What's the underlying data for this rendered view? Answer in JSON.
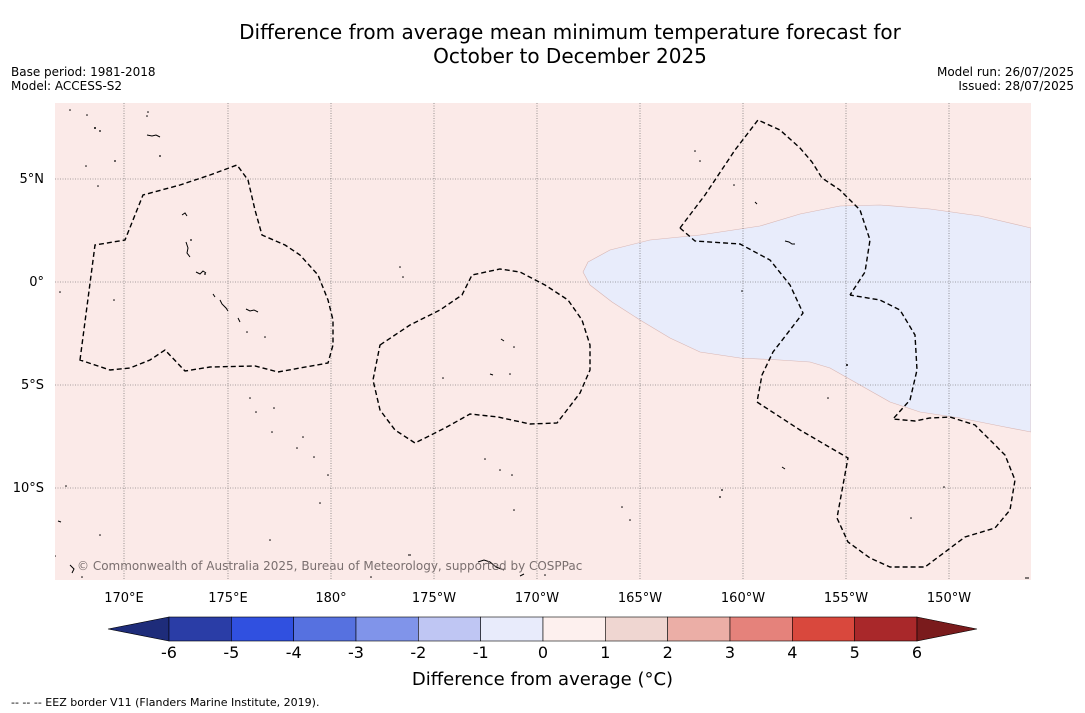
{
  "title": {
    "line1": "Difference from average mean minimum temperature forecast for",
    "line2": "October to December 2025"
  },
  "meta": {
    "base_period": "Base period: 1981-2018",
    "model": "Model: ACCESS-S2",
    "model_run": "Model run: 26/07/2025",
    "issued": "Issued: 28/07/2025"
  },
  "map": {
    "copyright": "© Commonwealth of Australia 2025, Bureau of Meteorology, supported by COSPPac",
    "lon_labels": [
      "170°E",
      "175°E",
      "180°",
      "175°W",
      "170°W",
      "165°W",
      "160°W",
      "155°W",
      "150°W"
    ],
    "lat_labels": [
      "5°N",
      "0°",
      "5°S",
      "10°S"
    ],
    "background_color": "#fbeae8",
    "anomaly_region_color": "#e8ecfb",
    "anomaly_region_category": "-1 to 0"
  },
  "colorbar": {
    "ticks": [
      "-6",
      "-5",
      "-4",
      "-3",
      "-2",
      "-1",
      "0",
      "1",
      "2",
      "3",
      "4",
      "5",
      "6"
    ],
    "colors": [
      "#2a3da6",
      "#3050e0",
      "#5671e0",
      "#8094ea",
      "#bfc6f3",
      "#e8ebfb",
      "#fdf0ee",
      "#efd6d1",
      "#ebaea6",
      "#e5827b",
      "#d9483d",
      "#a9282a"
    ],
    "under_color": "#1e2c7a",
    "over_color": "#7a1b1c",
    "label": "Difference from average (°C)"
  },
  "legend_note": "--  --  -- EEZ border V11 (Flanders Marine Institute, 2019)."
}
